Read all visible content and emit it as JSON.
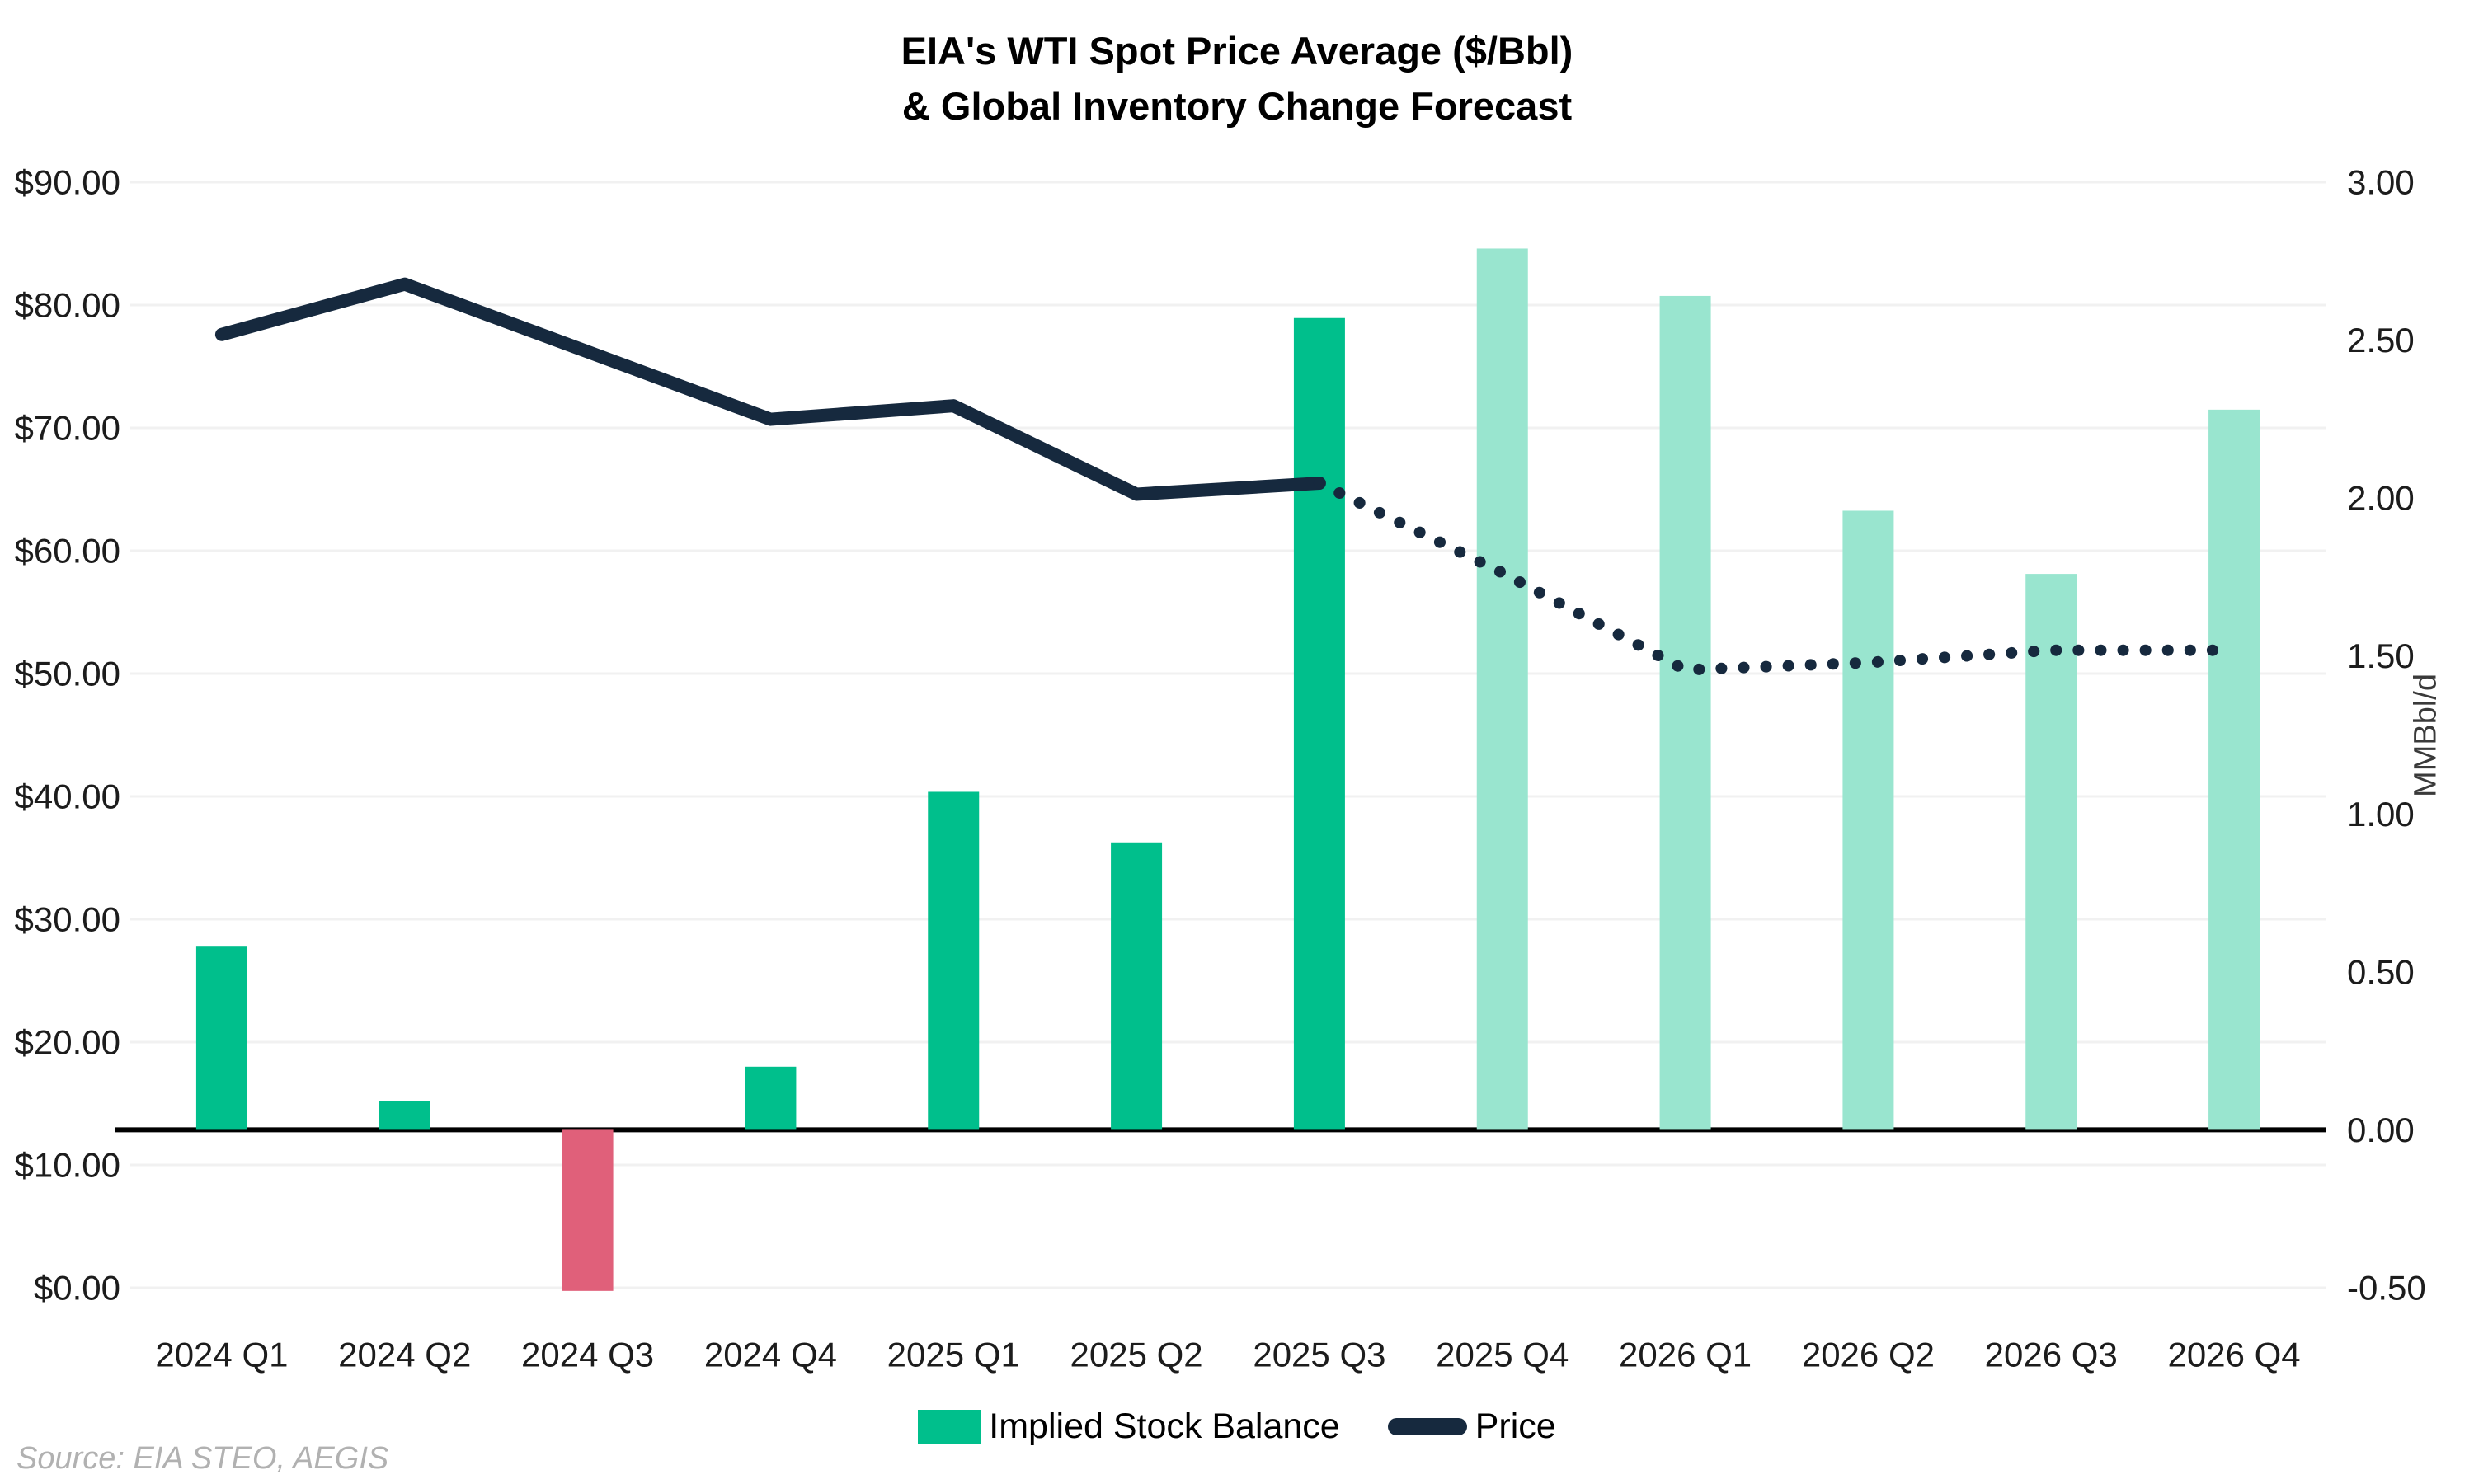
{
  "title": {
    "line1": "EIA's WTI Spot Price Average ($/Bbl)",
    "line2": "& Global Inventory Change Forecast"
  },
  "source_note": "Source: EIA STEO, AEGIS",
  "legend": {
    "items": [
      {
        "label": "Implied Stock Balance",
        "marker": "green-bar-swatch"
      },
      {
        "label": "Price",
        "marker": "navy-line-swatch"
      }
    ]
  },
  "colors": {
    "bar_actual": "#00BF8C",
    "bar_forecast": "#99E5CF",
    "bar_negative": "#E0607A",
    "price_line": "#16293E",
    "gridline": "#F1F1F1",
    "zero_line": "#000000",
    "axis_text": "#1C1C1C",
    "source_text": "#B1B1B1"
  },
  "chart_data": {
    "type": "bar+line dual-axis combo",
    "title": "EIA's WTI Spot Price Average ($/Bbl) & Global Inventory Change Forecast",
    "categories": [
      "2024 Q1",
      "2024 Q2",
      "2024 Q3",
      "2024 Q4",
      "2025 Q1",
      "2025 Q2",
      "2025 Q3",
      "2025 Q4",
      "2026 Q1",
      "2026 Q2",
      "2026 Q3",
      "2026 Q4"
    ],
    "series": [
      {
        "name": "Implied Stock Balance",
        "type": "bar",
        "axis": "right",
        "unit": "MMBbl/d",
        "values": [
          0.58,
          0.09,
          -0.51,
          0.2,
          1.07,
          0.91,
          2.57,
          2.79,
          2.64,
          1.96,
          1.76,
          2.28
        ],
        "segment": [
          "actual",
          "actual",
          "actual",
          "actual",
          "actual",
          "actual",
          "actual",
          "forecast",
          "forecast",
          "forecast",
          "forecast",
          "forecast"
        ]
      },
      {
        "name": "Price",
        "type": "line",
        "axis": "left",
        "unit": "$/Bbl",
        "values": [
          77.6,
          81.7,
          76.2,
          70.7,
          71.8,
          64.6,
          65.5,
          58.2,
          50.3,
          50.9,
          51.9,
          51.9
        ],
        "solid_until_index": 6,
        "style_note": "solid through 2025 Q3, dotted forecast afterward"
      }
    ],
    "left_axis": {
      "min": 0,
      "max": 90,
      "tick_labels": [
        "$90.00",
        "$80.00",
        "$70.00",
        "$60.00",
        "$50.00",
        "$40.00",
        "$30.00",
        "$20.00",
        "$10.00",
        "$0.00"
      ]
    },
    "right_axis": {
      "min": -0.5,
      "max": 3.0,
      "tick_labels": [
        "3.00",
        "2.50",
        "2.00",
        "1.50",
        "1.00",
        "0.50",
        "0.00",
        "-0.50"
      ],
      "title": "MMBbl/d"
    },
    "grid": "horizontal gridlines at $10 steps, no vertical gridlines",
    "zero_line_right_axis": true,
    "legend_position": "bottom-center"
  }
}
